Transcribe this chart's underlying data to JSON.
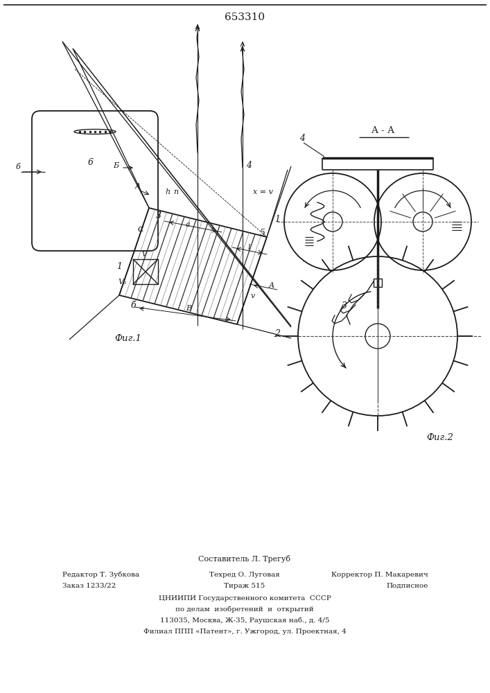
{
  "patent_number": "653310",
  "fig1_label": "Фиг.1",
  "fig2_label": "Фиг.2",
  "section_label": "А - А",
  "footer_line0_center": "Составитель Л. Трегуб",
  "footer_line1_left": "Редактор Т. Зубкова",
  "footer_line1_center": "Техред О. Луговая",
  "footer_line1_right": "Корректор П. Макаревич",
  "footer_line2_left": "Заказ 1233/22",
  "footer_line2_center": "Тираж 515",
  "footer_line2_right": "Подписное",
  "footer_org": "ЦНИИПИ Государственного комитета  СССР",
  "footer_org2": "по делам  изобретений  и  открытий",
  "footer_addr1": "113035, Москва, Ж-35, Раушская наб., д. 4/5",
  "footer_addr2": "Филиал ППП «Патент», г. Ужгород, ул. Проектная, 4",
  "bg_color": "#ffffff",
  "line_color": "#1a1a1a",
  "text_color": "#1a1a1a"
}
